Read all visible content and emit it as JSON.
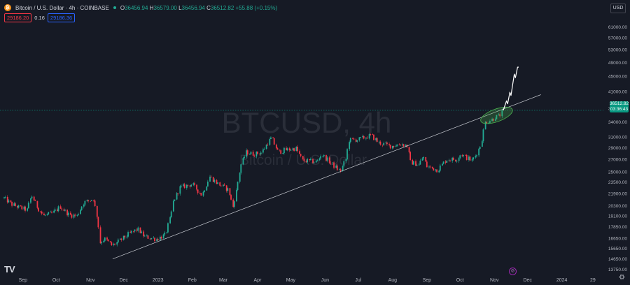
{
  "header": {
    "symbol_title": "Bitcoin / U.S. Dollar · 4h · COINBASE",
    "coin_icon": "bitcoin-icon",
    "open_label": "O",
    "open": "36456.94",
    "high_label": "H",
    "high": "36579.00",
    "low_label": "L",
    "low": "36456.94",
    "close_label": "C",
    "close": "36512.82",
    "change": "+55.88 (+0.15%)",
    "sell_price": "29186.20",
    "spread": "0.16",
    "buy_price": "29186.36"
  },
  "currency_button": "USD",
  "watermark": {
    "symbol": "BTCUSD, 4h",
    "name": "Bitcoin / U.S. Dollar"
  },
  "current_price": {
    "value": "36512.82",
    "countdown": "03:36:43"
  },
  "icons": {
    "logo": "tradingview-logo",
    "settings": "gear-icon",
    "replay": "animation-icon"
  },
  "colors": {
    "background": "#161a25",
    "up": "#22ab94",
    "down": "#f23645",
    "trendline": "#c8cbd2",
    "highlight": "#4caf50",
    "current_price": "#089981"
  },
  "chart_data": {
    "type": "candlestick",
    "y_axis": {
      "scale": "log",
      "ylim": [
        13200,
        68000
      ],
      "ticks": [
        61000,
        57000,
        53000,
        49000,
        45000,
        41000,
        37000,
        34000,
        31000,
        29000,
        27000,
        25000,
        23500,
        21900,
        20300,
        19100,
        17850,
        16650,
        15650,
        14650,
        13750
      ],
      "tick_labels": [
        "61000.00",
        "57000.00",
        "53000.00",
        "49000.00",
        "45000.00",
        "41000.00",
        "37000.00",
        "34000.00",
        "31000.00",
        "29000.00",
        "27000.00",
        "25000.00",
        "23500.00",
        "21900.00",
        "20300.00",
        "19100.00",
        "17850.00",
        "16650.00",
        "15650.00",
        "14650.00",
        "13750.00"
      ]
    },
    "x_axis": {
      "range": [
        "2022-08-15",
        "2024-02-05"
      ],
      "ticks": [
        "2022-09-01",
        "2022-10-01",
        "2022-11-01",
        "2022-12-01",
        "2023-01-01",
        "2023-02-01",
        "2023-03-01",
        "2023-04-01",
        "2023-05-01",
        "2023-06-01",
        "2023-07-01",
        "2023-08-01",
        "2023-09-01",
        "2023-10-01",
        "2023-11-01",
        "2023-12-01",
        "2024-01-01",
        "2024-01-29"
      ],
      "tick_labels": [
        "Sep",
        "Oct",
        "Nov",
        "Dec",
        "2023",
        "Feb",
        "Mar",
        "Apr",
        "May",
        "Jun",
        "Jul",
        "Aug",
        "Sep",
        "Oct",
        "Nov",
        "Dec",
        "2024",
        "29"
      ]
    },
    "price_path": [
      [
        "2022-08-15",
        21300
      ],
      [
        "2022-08-22",
        20500
      ],
      [
        "2022-08-29",
        20100
      ],
      [
        "2022-09-05",
        19800
      ],
      [
        "2022-09-09",
        21700
      ],
      [
        "2022-09-14",
        20200
      ],
      [
        "2022-09-20",
        19100
      ],
      [
        "2022-09-28",
        19400
      ],
      [
        "2022-10-05",
        20200
      ],
      [
        "2022-10-13",
        19200
      ],
      [
        "2022-10-20",
        19100
      ],
      [
        "2022-10-26",
        20700
      ],
      [
        "2022-11-04",
        21200
      ],
      [
        "2022-11-08",
        18500
      ],
      [
        "2022-11-10",
        16200
      ],
      [
        "2022-11-14",
        16600
      ],
      [
        "2022-11-21",
        15900
      ],
      [
        "2022-11-28",
        16400
      ],
      [
        "2022-12-05",
        17000
      ],
      [
        "2022-12-14",
        17600
      ],
      [
        "2022-12-20",
        16800
      ],
      [
        "2022-12-31",
        16550
      ],
      [
        "2023-01-08",
        17000
      ],
      [
        "2023-01-13",
        19100
      ],
      [
        "2023-01-15",
        20800
      ],
      [
        "2023-01-21",
        22700
      ],
      [
        "2023-02-01",
        23200
      ],
      [
        "2023-02-10",
        21700
      ],
      [
        "2023-02-17",
        24300
      ],
      [
        "2023-02-24",
        23300
      ],
      [
        "2023-03-06",
        22400
      ],
      [
        "2023-03-10",
        20200
      ],
      [
        "2023-03-13",
        22200
      ],
      [
        "2023-03-17",
        26000
      ],
      [
        "2023-03-22",
        28200
      ],
      [
        "2023-03-29",
        27900
      ],
      [
        "2023-04-05",
        28200
      ],
      [
        "2023-04-11",
        30100
      ],
      [
        "2023-04-14",
        30800
      ],
      [
        "2023-04-20",
        28200
      ],
      [
        "2023-04-26",
        28600
      ],
      [
        "2023-05-06",
        28900
      ],
      [
        "2023-05-12",
        26800
      ],
      [
        "2023-05-25",
        26600
      ],
      [
        "2023-05-29",
        27900
      ],
      [
        "2023-06-06",
        26500
      ],
      [
        "2023-06-15",
        25100
      ],
      [
        "2023-06-20",
        27000
      ],
      [
        "2023-06-23",
        30400
      ],
      [
        "2023-07-01",
        30500
      ],
      [
        "2023-07-13",
        31300
      ],
      [
        "2023-07-20",
        29900
      ],
      [
        "2023-07-31",
        29300
      ],
      [
        "2023-08-09",
        29700
      ],
      [
        "2023-08-15",
        29300
      ],
      [
        "2023-08-17",
        26600
      ],
      [
        "2023-08-25",
        26100
      ],
      [
        "2023-08-29",
        27600
      ],
      [
        "2023-09-01",
        25900
      ],
      [
        "2023-09-11",
        25300
      ],
      [
        "2023-09-19",
        27000
      ],
      [
        "2023-09-28",
        27000
      ],
      [
        "2023-10-02",
        27900
      ],
      [
        "2023-10-12",
        26800
      ],
      [
        "2023-10-16",
        27900
      ],
      [
        "2023-10-20",
        29600
      ],
      [
        "2023-10-24",
        33900
      ],
      [
        "2023-10-31",
        34600
      ],
      [
        "2023-11-02",
        35000
      ],
      [
        "2023-11-06",
        35300
      ],
      [
        "2023-11-09",
        36512.82
      ]
    ],
    "trendline": {
      "start": [
        "2022-11-21",
        14650
      ],
      "end": [
        "2023-12-13",
        40200
      ]
    },
    "projection": [
      [
        "2023-11-09",
        36500
      ],
      [
        "2023-11-12",
        38700
      ],
      [
        "2023-11-13",
        38000
      ],
      [
        "2023-11-15",
        40800
      ],
      [
        "2023-11-16",
        40000
      ],
      [
        "2023-11-19",
        45600
      ],
      [
        "2023-11-20",
        44600
      ],
      [
        "2023-11-22",
        47600
      ],
      [
        "2023-11-23",
        47600
      ]
    ],
    "highlight_ellipse": {
      "center": [
        "2023-11-03",
        35400
      ]
    },
    "current_price_line": 36512.82,
    "grid": false,
    "legend": "top-left"
  }
}
